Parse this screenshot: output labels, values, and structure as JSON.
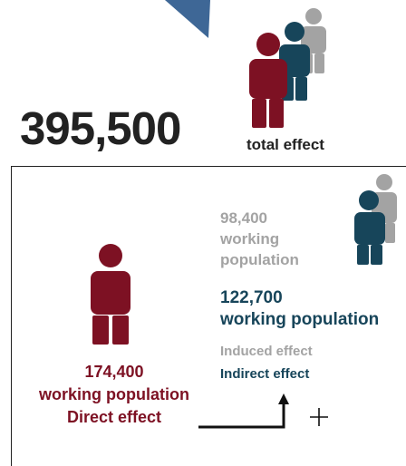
{
  "colors": {
    "direct": "#7d1123",
    "indirect": "#17455a",
    "induced": "#a3a3a3",
    "arrow": "#3e6796",
    "text": "#222222"
  },
  "total": {
    "value": "395,500",
    "label": "total effect"
  },
  "induced": {
    "number": "98,400",
    "line1": "working",
    "line2": "population",
    "label": "Induced effect"
  },
  "indirect": {
    "number": "122,700",
    "line1": "working population",
    "label": "Indirect effect"
  },
  "direct": {
    "number": "174,400",
    "line1": "working population",
    "label": "Direct effect"
  },
  "icons": [
    "down-arrow-icon",
    "person-icon",
    "plus-icon"
  ]
}
